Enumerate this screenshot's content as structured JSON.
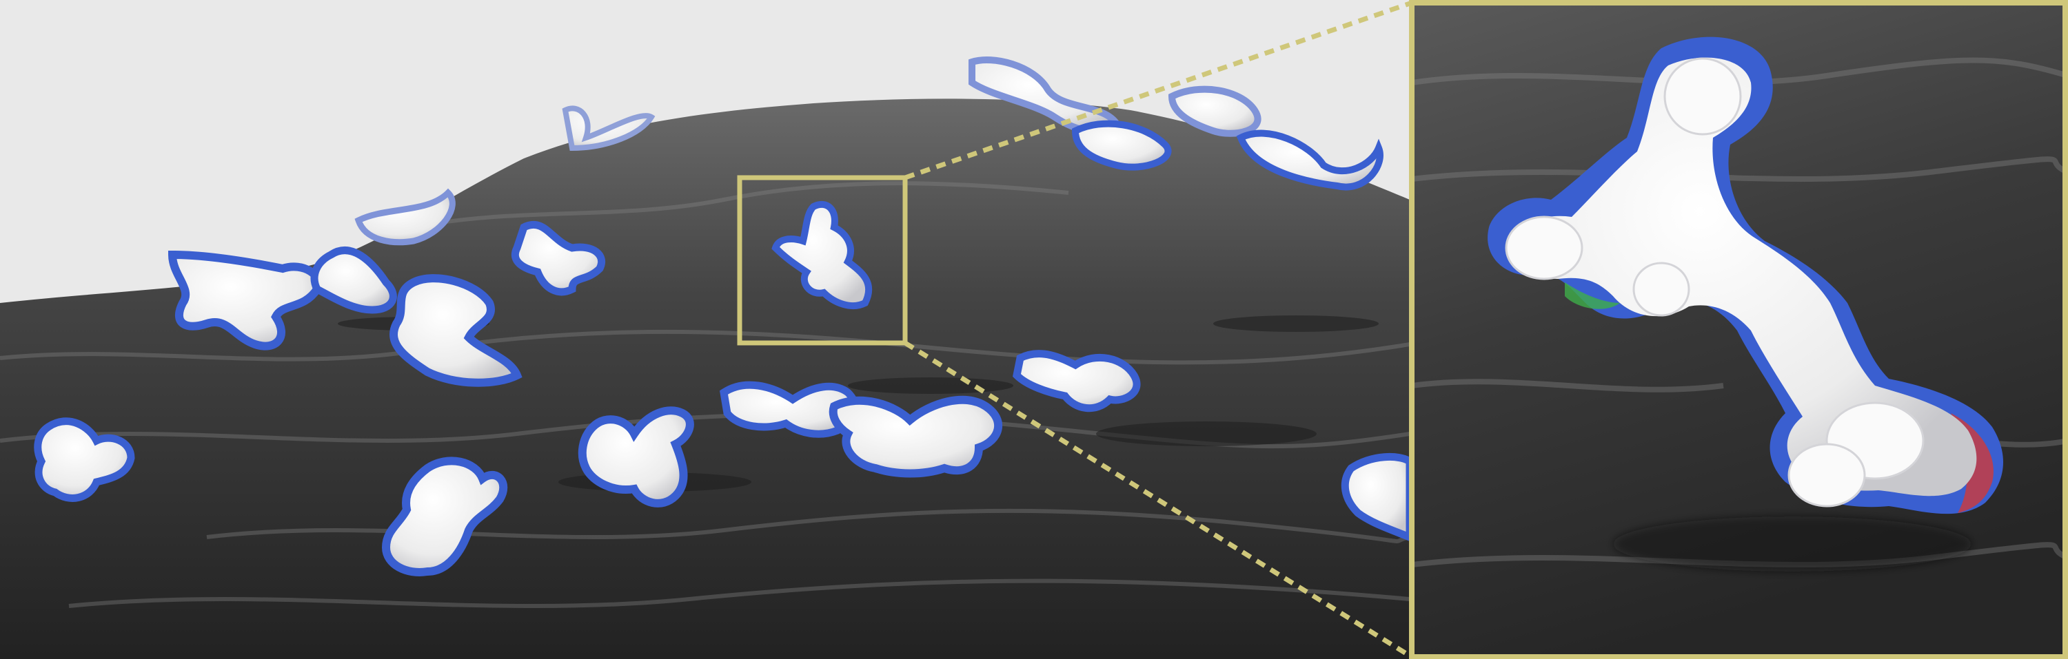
{
  "figure": {
    "description_icon": "render-scene-icon",
    "colors": {
      "sky": "#e9e9e9",
      "surface_dark": "#2a2a2a",
      "surface_mid": "#4a4a4a",
      "surface_highlight": "#8c8c8c",
      "blob_white": "#f1f1f1",
      "blob_shadow": "#c9c9cc",
      "outline_blue": "#3a5fd0",
      "outline_red": "#d03a3a",
      "outline_green": "#3fae4a",
      "inset_frame": "#cfc77a"
    },
    "panels": [
      {
        "id": "overview",
        "kind": "wide-render"
      },
      {
        "id": "zoom",
        "kind": "magnified-inset"
      }
    ]
  }
}
